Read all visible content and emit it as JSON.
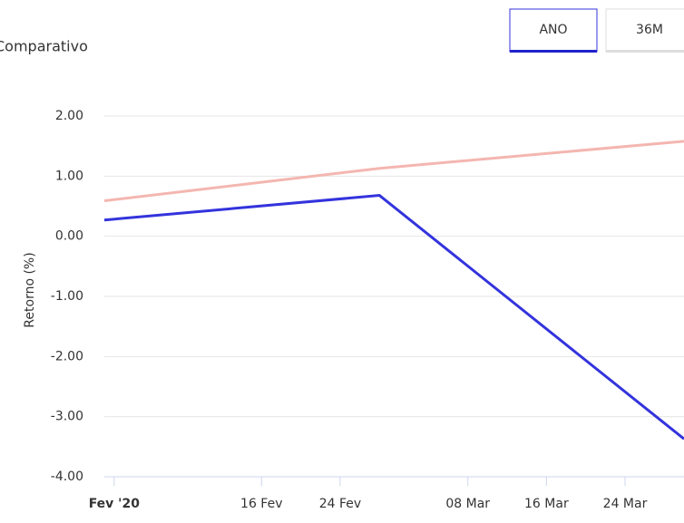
{
  "chart_data": {
    "type": "line",
    "title": "Comparativo",
    "buttons": [
      "ANO",
      "36M"
    ],
    "y_label": "Retorno (%)",
    "x": [
      "2020-01-31",
      "2020-02-28",
      "2020-03-30"
    ],
    "series": [
      {
        "color": "#f4b6b0",
        "values": [
          0.59,
          1.13,
          1.58
        ]
      },
      {
        "color": "#3333dd",
        "values": [
          0.27,
          0.68,
          -3.37
        ]
      }
    ],
    "xlim": [
      "2020-01-31",
      "2020-03-30"
    ],
    "xticks": [
      {
        "value": "2020-02-01",
        "label": "Fev '20"
      },
      {
        "value": "2020-02-16",
        "label": "16 Fev"
      },
      {
        "value": "2020-02-24",
        "label": "24 Fev"
      },
      {
        "value": "2020-03-08",
        "label": "08 Mar"
      },
      {
        "value": "2020-03-16",
        "label": "16 Mar"
      },
      {
        "value": "2020-03-24",
        "label": "24 Mar"
      }
    ],
    "ylim": [
      -4,
      2
    ],
    "yticks": [
      {
        "value": 2,
        "label": "2.00"
      },
      {
        "value": 1,
        "label": "1.00"
      },
      {
        "value": 0,
        "label": "0.00"
      },
      {
        "value": -1,
        "label": "-1.00"
      },
      {
        "value": -2,
        "label": "-2.00"
      },
      {
        "value": -3,
        "label": "-3.00"
      },
      {
        "value": -4,
        "label": "-4.00"
      }
    ],
    "grid": true
  }
}
